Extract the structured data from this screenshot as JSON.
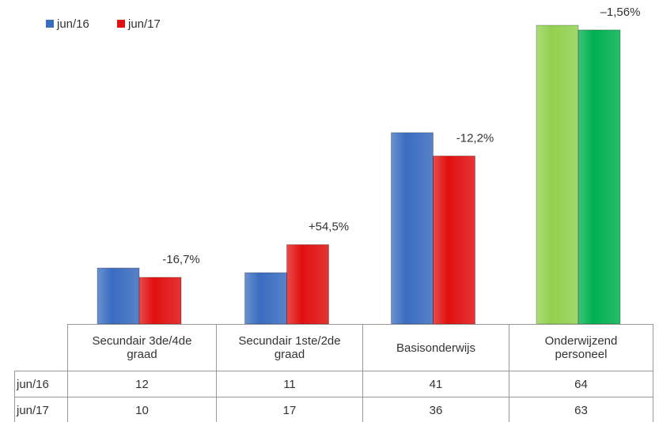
{
  "chart_data": {
    "type": "bar",
    "categories": [
      "Secundair 3de/4de graad",
      "Secundair 1ste/2de graad",
      "Basisonderwijs",
      "Onderwijzend personeel"
    ],
    "series": [
      {
        "name": "jun/16",
        "color": "#3a6cc0",
        "colors": [
          "#3a6cc0",
          "#3a6cc0",
          "#3a6cc0",
          "#92d050"
        ],
        "values": [
          12,
          11,
          41,
          64
        ]
      },
      {
        "name": "jun/17",
        "color": "#e01010",
        "colors": [
          "#e01010",
          "#e01010",
          "#e01010",
          "#00b050"
        ],
        "values": [
          10,
          17,
          36,
          63
        ]
      }
    ],
    "annotations": [
      "-16,7%",
      "+54,5%",
      "-12,2%",
      "–1,56%"
    ],
    "legend": "top-left"
  }
}
